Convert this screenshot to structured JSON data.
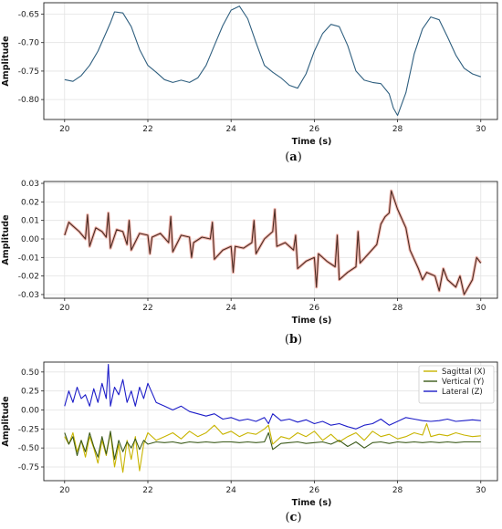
{
  "chart_data": [
    {
      "type": "line",
      "caption_letter": "a",
      "xlabel": "Time (s)",
      "ylabel": "Amplitude",
      "xlim": [
        19.5,
        30.4
      ],
      "ylim": [
        -0.835,
        -0.63
      ],
      "xticks": [
        20,
        22,
        24,
        26,
        28,
        30
      ],
      "xtick_labels": [
        "20",
        "22",
        "24",
        "26",
        "28",
        "30"
      ],
      "yticks": [
        -0.8,
        -0.75,
        -0.7,
        -0.65
      ],
      "ytick_labels": [
        "-0.80",
        "-0.75",
        "-0.70",
        "-0.65"
      ],
      "grid": true,
      "series": [
        {
          "color": "#2f5f7f",
          "x": [
            20.0,
            20.2,
            20.4,
            20.6,
            20.8,
            21.0,
            21.1,
            21.2,
            21.4,
            21.6,
            21.8,
            22.0,
            22.2,
            22.4,
            22.6,
            22.8,
            23.0,
            23.2,
            23.4,
            23.6,
            23.8,
            24.0,
            24.2,
            24.4,
            24.6,
            24.8,
            25.0,
            25.2,
            25.4,
            25.6,
            25.8,
            26.0,
            26.2,
            26.4,
            26.6,
            26.8,
            27.0,
            27.2,
            27.4,
            27.6,
            27.8,
            27.9,
            28.0,
            28.2,
            28.4,
            28.6,
            28.8,
            29.0,
            29.2,
            29.4,
            29.6,
            29.8,
            30.0
          ],
          "y": [
            -0.765,
            -0.768,
            -0.758,
            -0.74,
            -0.715,
            -0.682,
            -0.665,
            -0.646,
            -0.648,
            -0.672,
            -0.712,
            -0.74,
            -0.752,
            -0.765,
            -0.77,
            -0.766,
            -0.77,
            -0.762,
            -0.74,
            -0.705,
            -0.67,
            -0.643,
            -0.636,
            -0.658,
            -0.7,
            -0.74,
            -0.752,
            -0.762,
            -0.775,
            -0.78,
            -0.755,
            -0.715,
            -0.684,
            -0.668,
            -0.672,
            -0.705,
            -0.75,
            -0.766,
            -0.77,
            -0.772,
            -0.79,
            -0.815,
            -0.828,
            -0.788,
            -0.72,
            -0.676,
            -0.655,
            -0.66,
            -0.69,
            -0.722,
            -0.745,
            -0.755,
            -0.76
          ]
        }
      ]
    },
    {
      "type": "line",
      "caption_letter": "b",
      "xlabel": "Time (s)",
      "ylabel": "Amplitude",
      "xlim": [
        19.5,
        30.4
      ],
      "ylim": [
        -0.032,
        0.031
      ],
      "xticks": [
        20,
        22,
        24,
        26,
        28,
        30
      ],
      "xtick_labels": [
        "20",
        "22",
        "24",
        "26",
        "28",
        "30"
      ],
      "yticks": [
        -0.03,
        -0.02,
        -0.01,
        0.0,
        0.01,
        0.02,
        0.03
      ],
      "ytick_labels": [
        "-0.03",
        "-0.02",
        "-0.01",
        "0.00",
        "0.01",
        "0.02",
        "0.03"
      ],
      "grid": true,
      "series": [
        {
          "color": "#4a2b22",
          "halo": "#f2b8b0",
          "x": [
            20.0,
            20.1,
            20.2,
            20.35,
            20.5,
            20.55,
            20.6,
            20.75,
            20.9,
            21.0,
            21.05,
            21.1,
            21.25,
            21.4,
            21.5,
            21.55,
            21.6,
            21.8,
            22.0,
            22.05,
            22.1,
            22.3,
            22.5,
            22.55,
            22.6,
            22.8,
            23.0,
            23.05,
            23.1,
            23.3,
            23.5,
            23.55,
            23.6,
            23.8,
            24.0,
            24.05,
            24.1,
            24.3,
            24.5,
            24.55,
            24.6,
            24.8,
            25.0,
            25.05,
            25.1,
            25.3,
            25.5,
            25.55,
            25.6,
            25.8,
            26.0,
            26.05,
            26.1,
            26.3,
            26.5,
            26.55,
            26.6,
            26.8,
            27.0,
            27.05,
            27.1,
            27.3,
            27.5,
            27.6,
            27.7,
            27.8,
            27.85,
            28.0,
            28.2,
            28.3,
            28.5,
            28.6,
            28.7,
            28.9,
            29.0,
            29.1,
            29.2,
            29.4,
            29.5,
            29.6,
            29.8,
            29.9,
            30.0
          ],
          "y": [
            0.002,
            0.009,
            0.007,
            0.004,
            0.0,
            0.013,
            -0.004,
            0.006,
            0.004,
            0.001,
            0.014,
            -0.005,
            0.005,
            0.004,
            -0.003,
            0.01,
            -0.006,
            0.003,
            0.002,
            -0.008,
            0.001,
            0.003,
            -0.002,
            0.012,
            -0.007,
            0.002,
            0.001,
            -0.01,
            -0.002,
            0.001,
            0.0,
            0.009,
            -0.011,
            -0.006,
            -0.004,
            -0.018,
            -0.004,
            -0.005,
            -0.002,
            0.01,
            -0.008,
            0.0,
            0.004,
            0.016,
            -0.004,
            -0.002,
            -0.006,
            0.002,
            -0.016,
            -0.012,
            -0.01,
            -0.026,
            -0.008,
            -0.012,
            -0.015,
            0.002,
            -0.022,
            -0.018,
            -0.015,
            0.004,
            -0.013,
            -0.008,
            -0.003,
            0.008,
            0.012,
            0.014,
            0.026,
            0.016,
            0.006,
            -0.006,
            -0.016,
            -0.022,
            -0.018,
            -0.02,
            -0.028,
            -0.016,
            -0.022,
            -0.026,
            -0.02,
            -0.03,
            -0.022,
            -0.01,
            -0.013
          ]
        }
      ]
    },
    {
      "type": "line",
      "caption_letter": "c",
      "xlabel": "Time (s)",
      "ylabel": "Amplitude",
      "xlim": [
        19.5,
        30.4
      ],
      "ylim": [
        -0.93,
        0.63
      ],
      "xticks": [
        20,
        22,
        24,
        26,
        28,
        30
      ],
      "xtick_labels": [
        "20",
        "22",
        "24",
        "26",
        "28",
        "30"
      ],
      "yticks": [
        -0.75,
        -0.5,
        -0.25,
        0.0,
        0.25,
        0.5
      ],
      "ytick_labels": [
        "-0.75",
        "-0.50",
        "-0.25",
        "0.00",
        "0.25",
        "0.50"
      ],
      "grid": true,
      "legend": "top-right",
      "series": [
        {
          "name": "Sagittal (X)",
          "color": "#c8b400",
          "x": [
            20.0,
            20.1,
            20.2,
            20.3,
            20.4,
            20.5,
            20.6,
            20.7,
            20.8,
            20.9,
            21.0,
            21.1,
            21.2,
            21.3,
            21.4,
            21.5,
            21.6,
            21.7,
            21.8,
            21.9,
            22.0,
            22.2,
            22.4,
            22.6,
            22.8,
            23.0,
            23.2,
            23.4,
            23.6,
            23.8,
            24.0,
            24.2,
            24.4,
            24.6,
            24.8,
            24.9,
            25.0,
            25.2,
            25.4,
            25.6,
            25.8,
            26.0,
            26.2,
            26.4,
            26.6,
            26.8,
            27.0,
            27.2,
            27.4,
            27.6,
            27.8,
            28.0,
            28.2,
            28.4,
            28.6,
            28.7,
            28.8,
            29.0,
            29.2,
            29.4,
            29.6,
            29.8,
            30.0
          ],
          "y": [
            -0.35,
            -0.45,
            -0.3,
            -0.55,
            -0.4,
            -0.62,
            -0.35,
            -0.5,
            -0.7,
            -0.4,
            -0.6,
            -0.3,
            -0.75,
            -0.45,
            -0.82,
            -0.4,
            -0.65,
            -0.35,
            -0.8,
            -0.45,
            -0.3,
            -0.4,
            -0.35,
            -0.3,
            -0.38,
            -0.28,
            -0.35,
            -0.3,
            -0.2,
            -0.32,
            -0.28,
            -0.35,
            -0.3,
            -0.32,
            -0.25,
            -0.2,
            -0.45,
            -0.35,
            -0.38,
            -0.3,
            -0.35,
            -0.28,
            -0.4,
            -0.32,
            -0.42,
            -0.35,
            -0.3,
            -0.4,
            -0.28,
            -0.35,
            -0.32,
            -0.38,
            -0.35,
            -0.3,
            -0.33,
            -0.18,
            -0.35,
            -0.32,
            -0.34,
            -0.3,
            -0.33,
            -0.35,
            -0.34
          ]
        },
        {
          "name": "Vertical (Y)",
          "color": "#3b5a1a",
          "x": [
            20.0,
            20.1,
            20.2,
            20.3,
            20.4,
            20.5,
            20.6,
            20.7,
            20.8,
            20.9,
            21.0,
            21.1,
            21.2,
            21.3,
            21.4,
            21.5,
            21.6,
            21.7,
            21.8,
            21.9,
            22.0,
            22.2,
            22.4,
            22.6,
            22.8,
            23.0,
            23.2,
            23.4,
            23.6,
            23.8,
            24.0,
            24.2,
            24.4,
            24.6,
            24.8,
            24.9,
            25.0,
            25.2,
            25.4,
            25.6,
            25.8,
            26.0,
            26.2,
            26.4,
            26.6,
            26.8,
            27.0,
            27.2,
            27.4,
            27.6,
            27.8,
            28.0,
            28.2,
            28.4,
            28.6,
            28.8,
            29.0,
            29.2,
            29.4,
            29.6,
            29.8,
            30.0
          ],
          "y": [
            -0.3,
            -0.45,
            -0.35,
            -0.6,
            -0.4,
            -0.55,
            -0.3,
            -0.48,
            -0.62,
            -0.35,
            -0.58,
            -0.28,
            -0.65,
            -0.4,
            -0.55,
            -0.42,
            -0.5,
            -0.38,
            -0.52,
            -0.4,
            -0.45,
            -0.42,
            -0.43,
            -0.42,
            -0.44,
            -0.42,
            -0.43,
            -0.42,
            -0.43,
            -0.42,
            -0.42,
            -0.43,
            -0.42,
            -0.43,
            -0.42,
            -0.3,
            -0.52,
            -0.44,
            -0.43,
            -0.42,
            -0.44,
            -0.43,
            -0.42,
            -0.45,
            -0.4,
            -0.48,
            -0.42,
            -0.5,
            -0.43,
            -0.42,
            -0.44,
            -0.42,
            -0.43,
            -0.42,
            -0.43,
            -0.42,
            -0.43,
            -0.42,
            -0.43,
            -0.42,
            -0.42,
            -0.42
          ]
        },
        {
          "name": "Lateral (Z)",
          "color": "#1c1cc8",
          "x": [
            20.0,
            20.1,
            20.2,
            20.3,
            20.4,
            20.5,
            20.6,
            20.7,
            20.8,
            20.9,
            21.0,
            21.05,
            21.1,
            21.2,
            21.3,
            21.4,
            21.5,
            21.6,
            21.7,
            21.8,
            21.9,
            22.0,
            22.2,
            22.4,
            22.6,
            22.8,
            23.0,
            23.2,
            23.4,
            23.6,
            23.8,
            24.0,
            24.2,
            24.4,
            24.6,
            24.8,
            24.9,
            25.0,
            25.2,
            25.4,
            25.6,
            25.8,
            26.0,
            26.2,
            26.4,
            26.6,
            26.8,
            27.0,
            27.2,
            27.4,
            27.6,
            27.8,
            28.0,
            28.2,
            28.4,
            28.6,
            28.8,
            29.0,
            29.2,
            29.4,
            29.6,
            29.8,
            30.0
          ],
          "y": [
            0.05,
            0.25,
            0.1,
            0.3,
            0.15,
            0.2,
            0.05,
            0.28,
            0.1,
            0.35,
            0.15,
            0.6,
            0.05,
            0.3,
            0.2,
            0.4,
            0.1,
            0.25,
            0.05,
            0.3,
            0.15,
            0.35,
            0.1,
            0.05,
            0.0,
            0.05,
            -0.02,
            -0.05,
            -0.08,
            -0.05,
            -0.12,
            -0.1,
            -0.14,
            -0.12,
            -0.15,
            -0.1,
            -0.18,
            -0.05,
            -0.14,
            -0.12,
            -0.16,
            -0.13,
            -0.18,
            -0.15,
            -0.2,
            -0.18,
            -0.22,
            -0.25,
            -0.2,
            -0.18,
            -0.12,
            -0.2,
            -0.15,
            -0.1,
            -0.12,
            -0.14,
            -0.15,
            -0.14,
            -0.12,
            -0.15,
            -0.14,
            -0.13,
            -0.14
          ]
        }
      ]
    }
  ]
}
